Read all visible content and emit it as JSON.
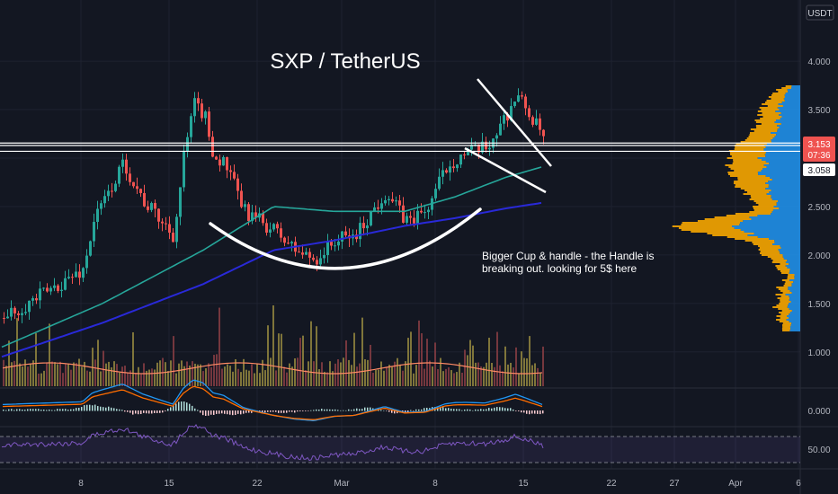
{
  "chart_data": [
    {
      "type": "candlestick",
      "title": "SXP / TetherUS",
      "currency_label": "USDT",
      "y_ticks": [
        1.0,
        1.5,
        2.0,
        2.5,
        3.0,
        3.5,
        4.0
      ],
      "y_tick_labels": [
        "1.000",
        "1.500",
        "2.000",
        "2.500",
        "3.000",
        "3.500",
        "4.000"
      ],
      "ylim": [
        0.74,
        4.43
      ],
      "x_tick_labels": [
        "8",
        "15",
        "22",
        "Mar",
        "8",
        "15",
        "22",
        "27",
        "Apr",
        "6"
      ],
      "last_price": "3.153",
      "countdown": "07:36",
      "marked_price": "3.058",
      "horizontal_lines": [
        3.155,
        3.13,
        3.07
      ],
      "price_path_days": [
        0,
        8,
        9,
        11,
        12,
        14,
        17,
        18,
        19,
        20,
        21,
        22,
        24,
        27,
        29,
        31,
        33,
        35,
        38,
        40,
        42,
        44,
        45,
        46,
        48,
        50,
        51,
        52,
        54,
        56,
        57,
        58
      ],
      "price_path": [
        1.35,
        1.85,
        2.35,
        2.75,
        2.95,
        2.55,
        2.2,
        3.05,
        3.55,
        3.45,
        3.0,
        2.95,
        2.45,
        2.25,
        2.05,
        1.95,
        2.15,
        2.2,
        2.65,
        2.35,
        2.45,
        2.9,
        3.0,
        3.05,
        3.1,
        3.45,
        3.65,
        3.5,
        3.15,
        2.95,
        3.05,
        3.15
      ],
      "ma_fast_days": [
        0,
        10,
        20,
        27,
        33,
        40,
        45,
        50,
        55,
        58
      ],
      "ma_fast": [
        1.05,
        1.5,
        2.05,
        2.5,
        2.45,
        2.45,
        2.6,
        2.8,
        2.95,
        3.0
      ],
      "ma_slow_days": [
        0,
        10,
        20,
        27,
        33,
        40,
        45,
        50,
        55,
        58
      ],
      "ma_slow": [
        0.95,
        1.3,
        1.7,
        2.05,
        2.15,
        2.3,
        2.38,
        2.48,
        2.56,
        2.6
      ],
      "annotation": [
        "Bigger Cup & handle - the Handle is",
        "breaking out. looking for 5$ here"
      ]
    },
    {
      "type": "bar",
      "name": "volume",
      "description_source": "volume bars with moving average"
    },
    {
      "type": "line",
      "name": "macd",
      "y_ticks": [
        0.0
      ],
      "y_tick_labels": [
        "0.000"
      ]
    },
    {
      "type": "line",
      "name": "rsi",
      "y_ticks": [
        50
      ],
      "y_tick_labels": [
        "50.00"
      ]
    }
  ],
  "colors": {
    "background": "#131722",
    "up": "#26a69a",
    "down": "#ef5350",
    "ma_fast": "#26a69a",
    "ma_slow": "#2929d8",
    "rsi": "#7e57c2",
    "macd": "#2196f3",
    "signal": "#ff6d00",
    "volume_profile_up": "#2196f3",
    "volume_profile_down": "#f7a600"
  }
}
